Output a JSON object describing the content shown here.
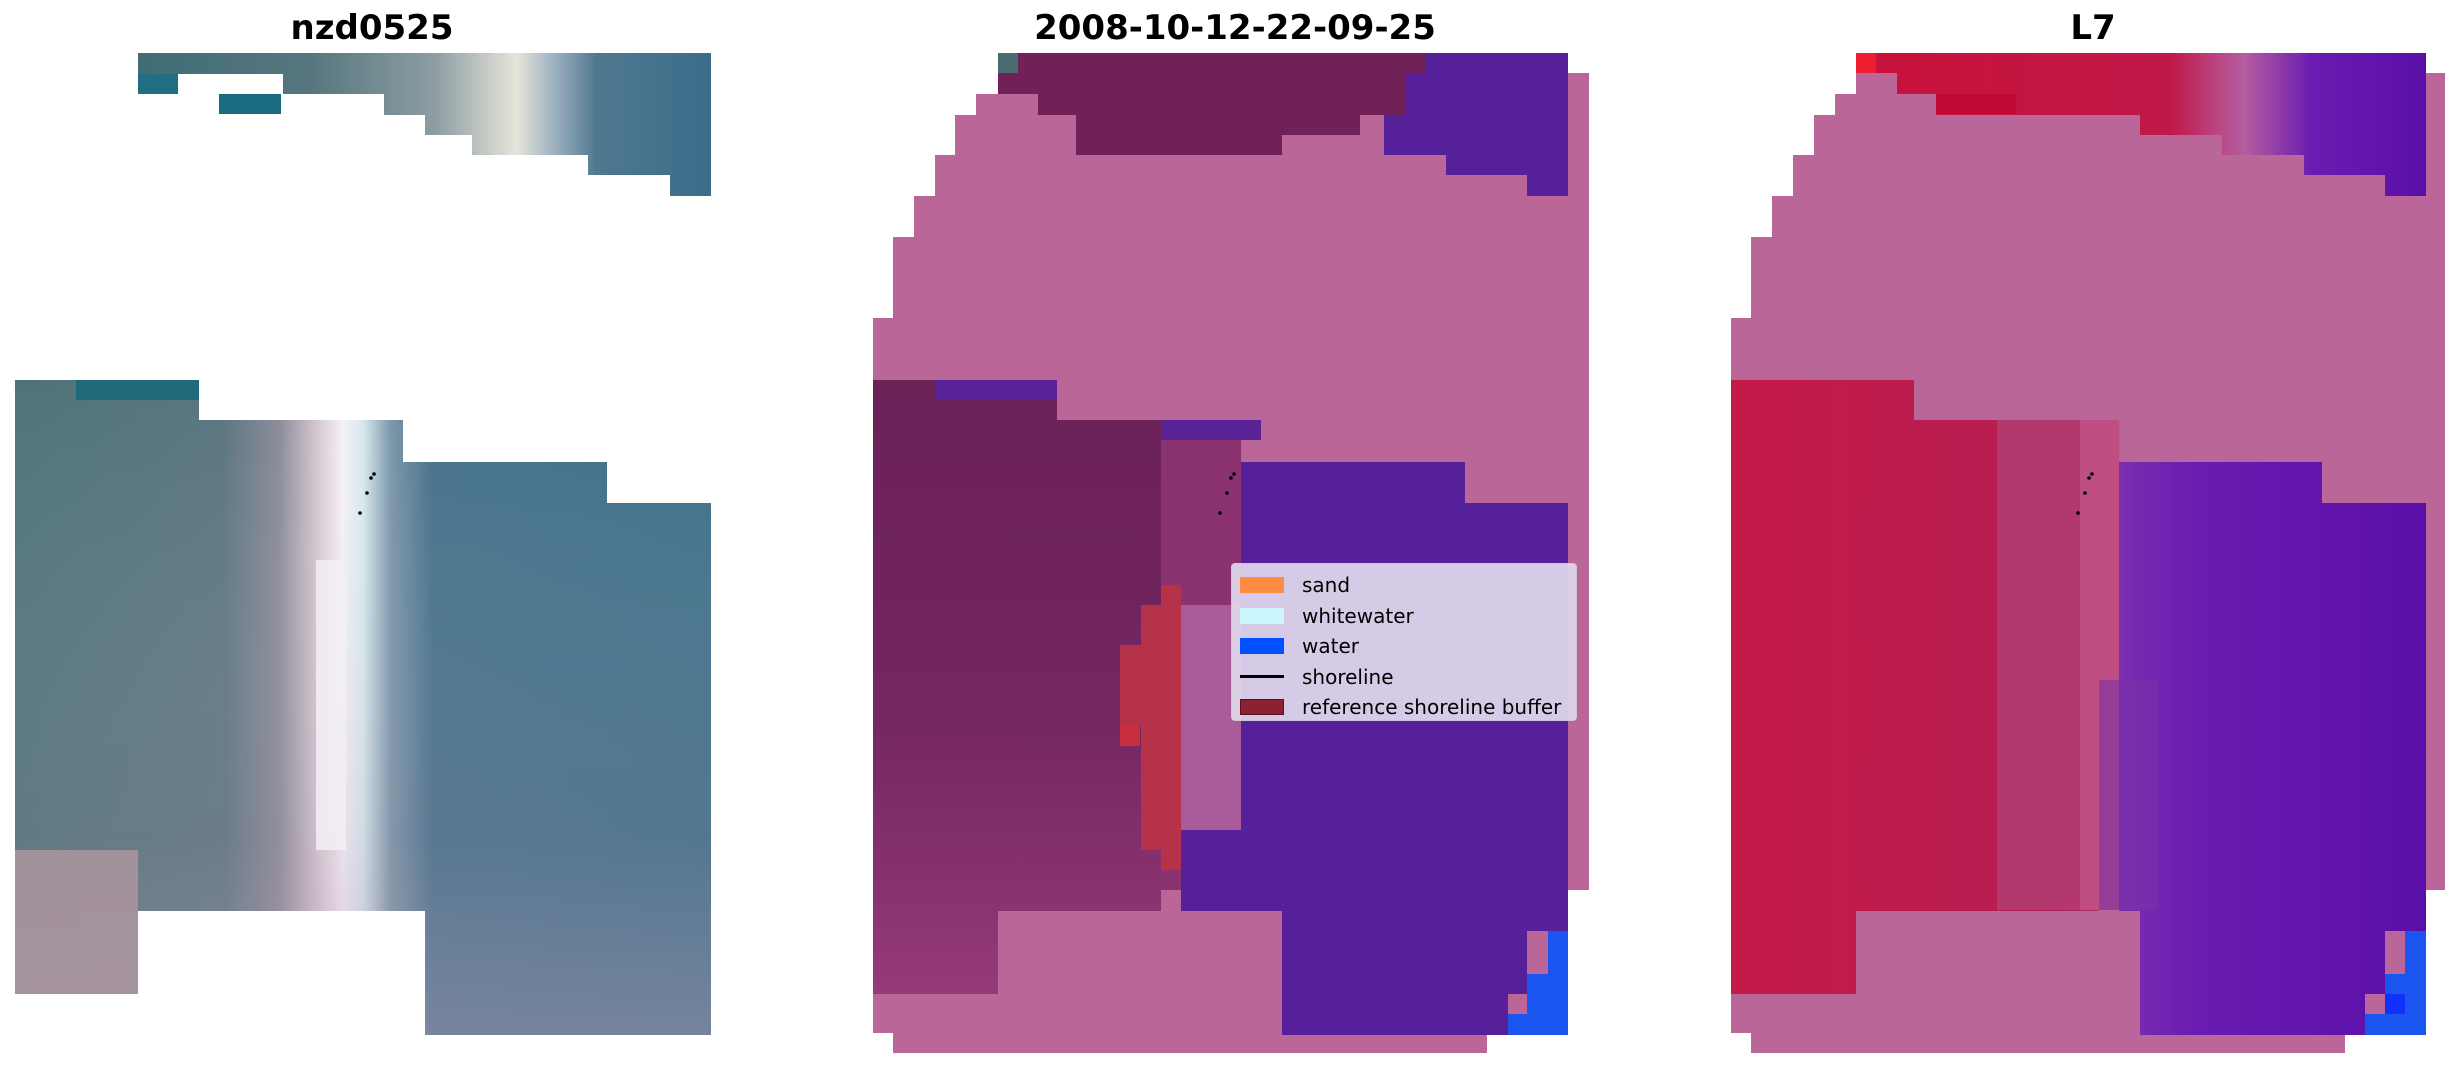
{
  "panels": [
    {
      "title": "nzd0525"
    },
    {
      "title": "2008-10-12-22-09-25"
    },
    {
      "title": "L7"
    }
  ],
  "legend": {
    "items": [
      {
        "label": "sand",
        "color": "#ff8c42",
        "kind": "patch"
      },
      {
        "label": "whitewater",
        "color": "#ccf7ff",
        "kind": "patch"
      },
      {
        "label": "water",
        "color": "#0050ff",
        "kind": "patch"
      },
      {
        "label": "shoreline",
        "color": "#000000",
        "kind": "line"
      },
      {
        "label": "reference shoreline buffer",
        "color": "#8b2232",
        "kind": "patch"
      }
    ]
  },
  "colors": {
    "background": "#ffffff",
    "rgb_dark": "#3a6b7a",
    "rgb_water": "#3d6e8c",
    "rgb_white": "#f2eef5",
    "rgb_pinkish": "#a9949f",
    "classified_land": "#6b2358",
    "classified_water": "#562096",
    "classified_nodata": "#ba6698",
    "classified_buffer": "#b63248",
    "ndwi_land": "#c01840",
    "ndwi_water": "#5e13a8",
    "ndwi_blue": "#1a55f0"
  }
}
